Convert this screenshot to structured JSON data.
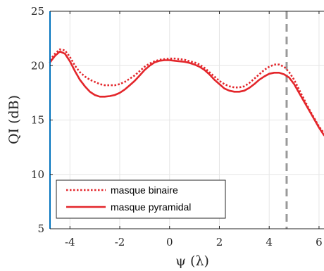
{
  "chart_data": {
    "type": "line",
    "title": "",
    "xlabel": "ψ (λ)",
    "ylabel": "QI (dB)",
    "xlim": [
      -4.8,
      6.2
    ],
    "ylim": [
      5,
      25
    ],
    "x_ticks": [
      -4,
      -2,
      0,
      2,
      4,
      6
    ],
    "x_tick_labels": [
      "-4",
      "-2",
      "0",
      "2",
      "4",
      "6"
    ],
    "y_ticks": [
      5,
      10,
      15,
      20,
      25
    ],
    "y_tick_labels": [
      "5",
      "10",
      "15",
      "20",
      "25"
    ],
    "grid": true,
    "legend_position": "bottom-left",
    "vline_x": 4.7,
    "series": [
      {
        "name": "masque binaire",
        "style": "dotted",
        "color": "#e3262b",
        "x": [
          -4.8,
          -4.7,
          -4.6,
          -4.4,
          -4.2,
          -4.0,
          -3.8,
          -3.6,
          -3.4,
          -3.2,
          -3.0,
          -2.8,
          -2.6,
          -2.4,
          -2.2,
          -2.0,
          -1.8,
          -1.6,
          -1.4,
          -1.2,
          -1.0,
          -0.8,
          -0.6,
          -0.4,
          -0.2,
          0.0,
          0.2,
          0.4,
          0.6,
          0.8,
          1.0,
          1.2,
          1.4,
          1.6,
          1.8,
          2.0,
          2.2,
          2.4,
          2.6,
          2.8,
          3.0,
          3.2,
          3.4,
          3.6,
          3.8,
          4.0,
          4.2,
          4.4,
          4.6,
          4.8,
          5.0,
          5.2,
          5.4,
          5.6,
          5.8,
          6.0,
          6.2
        ],
        "y": [
          20.5,
          20.8,
          21.1,
          21.5,
          21.4,
          20.8,
          20.0,
          19.4,
          19.0,
          18.7,
          18.5,
          18.3,
          18.2,
          18.2,
          18.2,
          18.3,
          18.5,
          18.8,
          19.1,
          19.5,
          19.9,
          20.2,
          20.4,
          20.55,
          20.6,
          20.65,
          20.65,
          20.6,
          20.55,
          20.4,
          20.3,
          20.1,
          19.8,
          19.4,
          19.0,
          18.6,
          18.3,
          18.1,
          18.0,
          18.0,
          18.1,
          18.4,
          18.8,
          19.2,
          19.6,
          19.9,
          20.1,
          20.1,
          19.9,
          19.4,
          18.7,
          17.8,
          16.9,
          16.0,
          15.2,
          14.4,
          13.8
        ]
      },
      {
        "name": "masque pyramidal",
        "style": "solid",
        "color": "#e3262b",
        "x": [
          -4.8,
          -4.7,
          -4.6,
          -4.4,
          -4.2,
          -4.0,
          -3.8,
          -3.6,
          -3.4,
          -3.2,
          -3.0,
          -2.8,
          -2.6,
          -2.4,
          -2.2,
          -2.0,
          -1.8,
          -1.6,
          -1.4,
          -1.2,
          -1.0,
          -0.8,
          -0.6,
          -0.4,
          -0.2,
          0.0,
          0.2,
          0.4,
          0.6,
          0.8,
          1.0,
          1.2,
          1.4,
          1.6,
          1.8,
          2.0,
          2.2,
          2.4,
          2.6,
          2.8,
          3.0,
          3.2,
          3.4,
          3.6,
          3.8,
          4.0,
          4.2,
          4.4,
          4.6,
          4.8,
          5.0,
          5.2,
          5.4,
          5.6,
          5.8,
          6.0,
          6.2
        ],
        "y": [
          20.3,
          20.6,
          20.9,
          21.3,
          21.1,
          20.4,
          19.5,
          18.7,
          18.1,
          17.6,
          17.3,
          17.15,
          17.15,
          17.2,
          17.3,
          17.5,
          17.8,
          18.2,
          18.6,
          19.1,
          19.6,
          20.0,
          20.3,
          20.45,
          20.5,
          20.5,
          20.45,
          20.4,
          20.35,
          20.25,
          20.1,
          19.9,
          19.6,
          19.2,
          18.7,
          18.3,
          17.9,
          17.7,
          17.6,
          17.6,
          17.7,
          17.95,
          18.3,
          18.7,
          19.0,
          19.25,
          19.35,
          19.35,
          19.2,
          18.9,
          18.3,
          17.5,
          16.7,
          15.9,
          15.1,
          14.3,
          13.6
        ]
      }
    ]
  }
}
